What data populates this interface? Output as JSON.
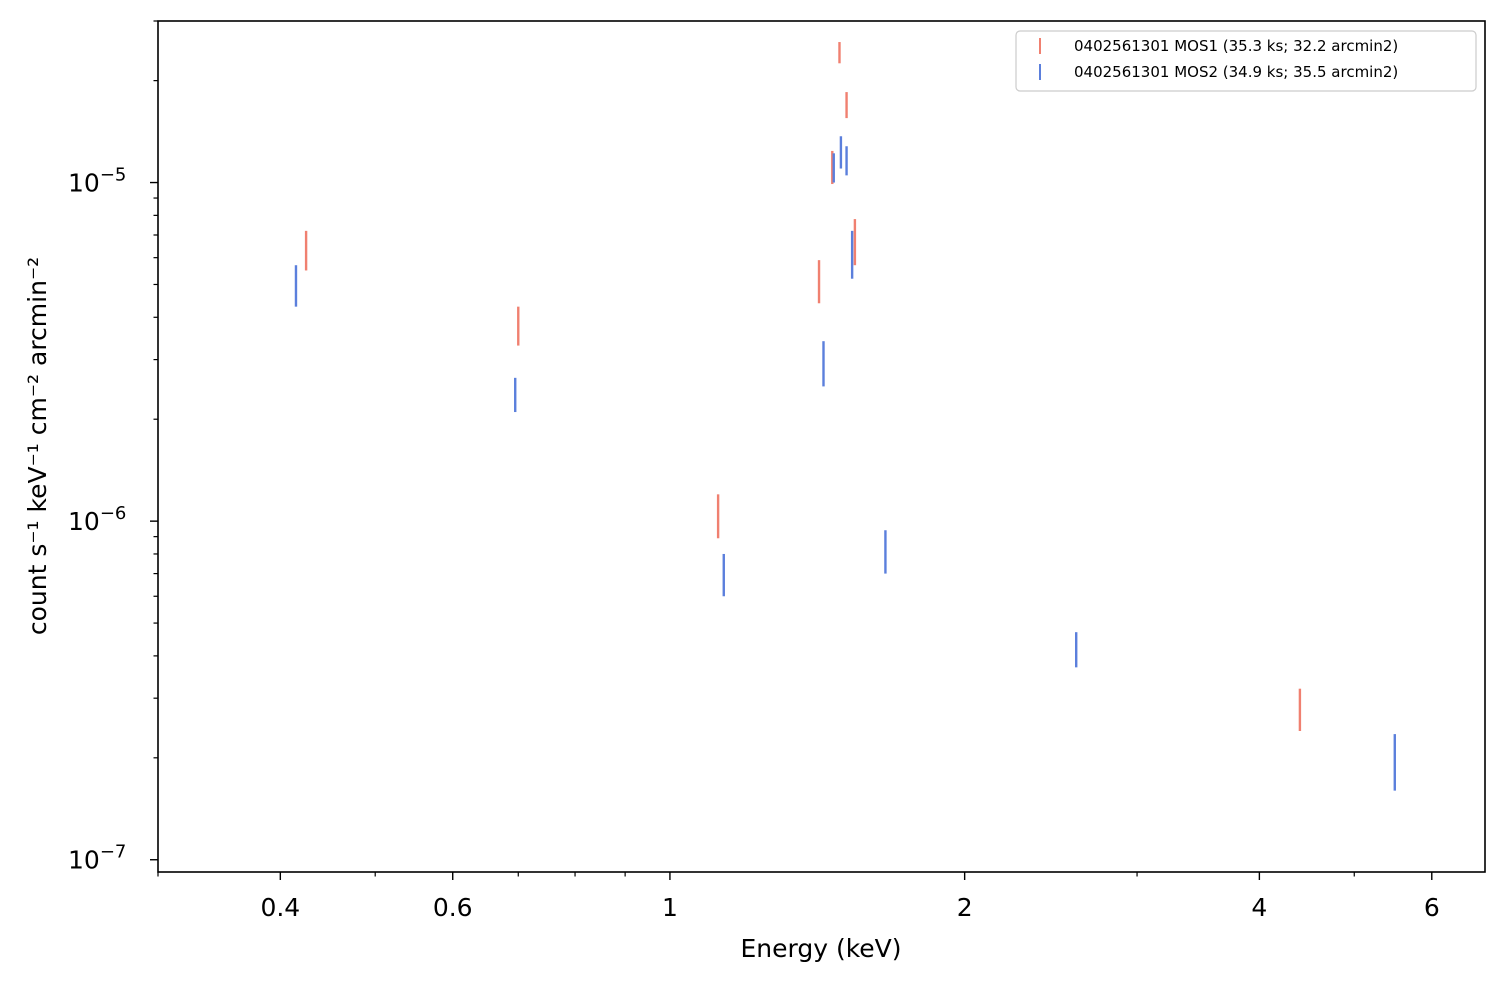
{
  "chart_data": {
    "type": "errorbar",
    "xlabel": "Energy (keV)",
    "ylabel": "count s⁻¹ keV⁻¹ cm⁻² arcmin⁻²",
    "xscale": "log",
    "yscale": "log",
    "xlim": [
      0.3,
      6.8
    ],
    "ylim": [
      9.2e-08,
      3e-05
    ],
    "x_ticks": [
      {
        "value": 0.4,
        "label": "0.4"
      },
      {
        "value": 0.6,
        "label": "0.6"
      },
      {
        "value": 1,
        "label": "1"
      },
      {
        "value": 2,
        "label": "2"
      },
      {
        "value": 4,
        "label": "4"
      },
      {
        "value": 6,
        "label": "6"
      }
    ],
    "x_minor_ticks": [
      0.3,
      0.5,
      0.7,
      0.8,
      0.9,
      3,
      5
    ],
    "y_ticks": [
      {
        "value": 1e-07,
        "mantissa": "10",
        "exponent": "−7"
      },
      {
        "value": 1e-06,
        "mantissa": "10",
        "exponent": "−6"
      },
      {
        "value": 1e-05,
        "mantissa": "10",
        "exponent": "−5"
      }
    ],
    "y_minor_ticks": [
      2e-07,
      3e-07,
      4e-07,
      5e-07,
      6e-07,
      7e-07,
      8e-07,
      9e-07,
      2e-06,
      3e-06,
      4e-06,
      5e-06,
      6e-06,
      7e-06,
      8e-06,
      9e-06,
      2e-05,
      3e-05
    ],
    "legend": {
      "position": "upper right"
    },
    "series": [
      {
        "name": "0402561301 MOS1 (35.3 ks; 32.2 arcmin2)",
        "color": "#f08070",
        "points": [
          {
            "x": 0.425,
            "ylo": 5.5e-06,
            "yhi": 7.2e-06
          },
          {
            "x": 0.7,
            "ylo": 3.3e-06,
            "yhi": 4.3e-06
          },
          {
            "x": 1.12,
            "ylo": 8.9e-07,
            "yhi": 1.2e-06
          },
          {
            "x": 1.42,
            "ylo": 4.4e-06,
            "yhi": 5.9e-06
          },
          {
            "x": 1.465,
            "ylo": 9.9e-06,
            "yhi": 1.24e-05
          },
          {
            "x": 1.49,
            "ylo": 2.25e-05,
            "yhi": 2.6e-05
          },
          {
            "x": 1.515,
            "ylo": 1.55e-05,
            "yhi": 1.85e-05
          },
          {
            "x": 1.545,
            "ylo": 5.7e-06,
            "yhi": 7.8e-06
          },
          {
            "x": 4.4,
            "ylo": 2.4e-07,
            "yhi": 3.2e-07
          }
        ]
      },
      {
        "name": "0402561301 MOS2 (34.9 ks; 35.5 arcmin2)",
        "color": "#5b7fdc",
        "points": [
          {
            "x": 0.415,
            "ylo": 4.3e-06,
            "yhi": 5.7e-06
          },
          {
            "x": 0.695,
            "ylo": 2.1e-06,
            "yhi": 2.65e-06
          },
          {
            "x": 1.135,
            "ylo": 6e-07,
            "yhi": 8e-07
          },
          {
            "x": 1.435,
            "ylo": 2.5e-06,
            "yhi": 3.4e-06
          },
          {
            "x": 1.47,
            "ylo": 1e-05,
            "yhi": 1.22e-05
          },
          {
            "x": 1.495,
            "ylo": 1.1e-05,
            "yhi": 1.37e-05
          },
          {
            "x": 1.515,
            "ylo": 1.05e-05,
            "yhi": 1.28e-05
          },
          {
            "x": 1.535,
            "ylo": 5.2e-06,
            "yhi": 7.2e-06
          },
          {
            "x": 1.66,
            "ylo": 7e-07,
            "yhi": 9.4e-07
          },
          {
            "x": 2.6,
            "ylo": 3.7e-07,
            "yhi": 4.7e-07
          },
          {
            "x": 5.5,
            "ylo": 1.6e-07,
            "yhi": 2.35e-07
          }
        ]
      }
    ]
  }
}
